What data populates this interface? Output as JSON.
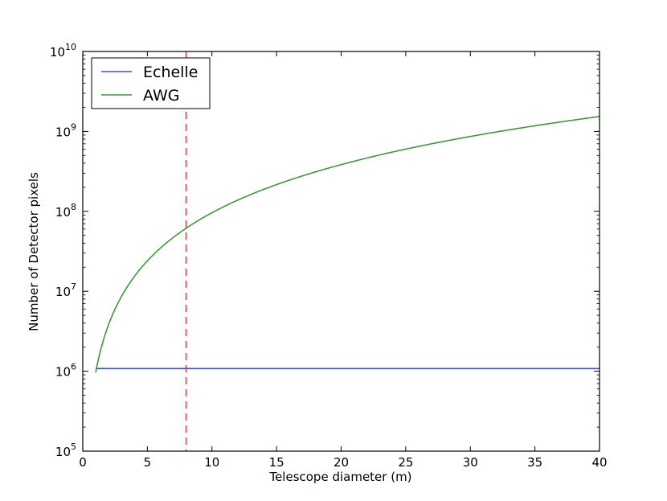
{
  "chart_data": {
    "type": "line",
    "title": "",
    "xlabel": "Telescope diameter (m)",
    "ylabel": "Number of Detector pixels",
    "xlim": [
      0,
      40
    ],
    "ylim": [
      100000,
      10000000000
    ],
    "yscale": "log",
    "grid": false,
    "legend_position": "top-left",
    "x_ticks": [
      {
        "value": 0,
        "label": "0"
      },
      {
        "value": 5,
        "label": "5"
      },
      {
        "value": 10,
        "label": "10"
      },
      {
        "value": 15,
        "label": "15"
      },
      {
        "value": 20,
        "label": "20"
      },
      {
        "value": 25,
        "label": "25"
      },
      {
        "value": 30,
        "label": "30"
      },
      {
        "value": 35,
        "label": "35"
      },
      {
        "value": 40,
        "label": "40"
      }
    ],
    "y_ticks": [
      {
        "value": 100000,
        "base": "10",
        "exp": "5"
      },
      {
        "value": 1000000,
        "base": "10",
        "exp": "6"
      },
      {
        "value": 10000000,
        "base": "10",
        "exp": "7"
      },
      {
        "value": 100000000,
        "base": "10",
        "exp": "8"
      },
      {
        "value": 1000000000,
        "base": "10",
        "exp": "9"
      },
      {
        "value": 10000000000,
        "base": "10",
        "exp": "10"
      }
    ],
    "series": [
      {
        "name": "Echelle",
        "color": "#3a4fd6",
        "x": [
          1,
          40
        ],
        "y": [
          1080000,
          1080000
        ]
      },
      {
        "name": "AWG",
        "color": "#3a9a3a",
        "x": [
          1,
          1.5,
          2,
          3,
          4,
          5,
          6,
          8,
          10,
          15,
          20,
          25,
          30,
          35,
          40
        ],
        "y": [
          960000,
          2200000,
          3900000,
          8700000,
          15400000,
          24000000,
          34500000,
          61500000,
          96000000,
          216000000,
          384000000,
          600000000,
          864000000,
          1176000000,
          1536000000
        ]
      }
    ],
    "reference_lines": [
      {
        "orientation": "vertical",
        "x": 8,
        "color": "#ff3333",
        "style": "dashed"
      }
    ]
  }
}
